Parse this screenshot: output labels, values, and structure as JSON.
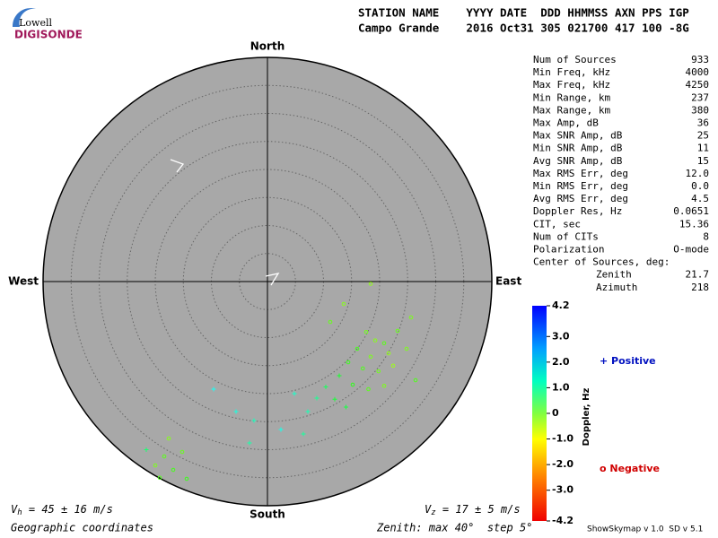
{
  "logo": {
    "top": "Lowell",
    "bottom": "DIGISONDE"
  },
  "header": {
    "line1": "STATION NAME    YYYY DATE  DDD HHMMSS AXN PPS IGP",
    "line2": "Campo Grande    2016 Oct31 305 021700 417 100 -8G"
  },
  "directions": {
    "north": "North",
    "south": "South",
    "east": "East",
    "west": "West"
  },
  "stats": [
    {
      "label": "Num of Sources",
      "value": "933"
    },
    {
      "label": "Min Freq, kHz",
      "value": "4000"
    },
    {
      "label": "Max Freq, kHz",
      "value": "4250"
    },
    {
      "label": "Min Range, km",
      "value": "237"
    },
    {
      "label": "Max Range, km",
      "value": "380"
    },
    {
      "label": "Max Amp, dB",
      "value": "36"
    },
    {
      "label": "Max SNR Amp, dB",
      "value": "25"
    },
    {
      "label": "Min SNR Amp, dB",
      "value": "11"
    },
    {
      "label": "Avg SNR Amp, dB",
      "value": "15"
    },
    {
      "label": "Max RMS Err, deg",
      "value": "12.0"
    },
    {
      "label": "Min RMS Err, deg",
      "value": "0.0"
    },
    {
      "label": "Avg RMS Err, deg",
      "value": "4.5"
    },
    {
      "label": "Doppler Res, Hz",
      "value": "0.0651"
    },
    {
      "label": "CIT, sec",
      "value": "15.36"
    },
    {
      "label": "Num of CITs",
      "value": "8"
    },
    {
      "label": "Polarization",
      "value": "O-mode"
    }
  ],
  "center": {
    "label": "Center of Sources, deg:",
    "rows": [
      {
        "label": "Zenith",
        "value": "21.7"
      },
      {
        "label": "Azimuth",
        "value": "218"
      }
    ]
  },
  "colorbar": {
    "title": "Doppler, Hz",
    "lim": [
      -4.2,
      4.2
    ],
    "ticks": [
      4.2,
      {
        "value": 3,
        "label": "3.0"
      },
      {
        "value": 2,
        "label": "2.0"
      },
      {
        "value": 1,
        "label": "1.0"
      },
      0,
      {
        "value": -1,
        "label": "-1.0"
      },
      {
        "value": -2,
        "label": "-2.0"
      },
      {
        "value": -3,
        "label": "-3.0"
      },
      -4.2
    ]
  },
  "legend": {
    "positive": "+ Positive",
    "negative": "o Negative"
  },
  "vh": {
    "symbol": "V",
    "sub": "h",
    "text": " = 45 ± 16 m/s"
  },
  "vz": {
    "symbol": "V",
    "sub": "z",
    "text": " = 17 ± 5 m/s"
  },
  "footer": {
    "coords": "Geographic coordinates",
    "zenith": "Zenith: max 40°  step 5°",
    "version": "ShowSkymap v 1.0  SD v 5.1"
  },
  "sources": [
    [
      17.6,
      -9,
      -0.8
    ],
    [
      19.2,
      -10.5,
      -1.0
    ],
    [
      20.8,
      -11,
      -0.6
    ],
    [
      16.0,
      -12,
      -0.4
    ],
    [
      18.4,
      -13.4,
      -0.9
    ],
    [
      21.6,
      -12.8,
      -1.1
    ],
    [
      23.2,
      -8.8,
      -0.7
    ],
    [
      14.4,
      -14.4,
      -0.3
    ],
    [
      17.0,
      -15.5,
      -0.5
    ],
    [
      19.8,
      -16,
      -0.8
    ],
    [
      22.4,
      -15,
      -1.2
    ],
    [
      24.8,
      -12,
      -0.9
    ],
    [
      12.8,
      -16.8,
      0.2
    ],
    [
      15.2,
      -18.4,
      -0.2
    ],
    [
      18.0,
      -19.2,
      -0.6
    ],
    [
      20.8,
      -18.6,
      -0.9
    ],
    [
      10.4,
      -18.8,
      0.6
    ],
    [
      12.0,
      -21.0,
      0.3
    ],
    [
      8.8,
      -20.8,
      1.1
    ],
    [
      14.0,
      -22.4,
      0.4
    ],
    [
      7.2,
      -23.2,
      1.4
    ],
    [
      4.8,
      -20.0,
      1.6
    ],
    [
      6.4,
      -27.2,
      1.2
    ],
    [
      2.4,
      -26.4,
      1.9
    ],
    [
      -2.4,
      -24.8,
      1.5
    ],
    [
      -5.6,
      -23.2,
      1.8
    ],
    [
      -9.6,
      -19.2,
      2.0
    ],
    [
      -3.2,
      -28.8,
      1.3
    ],
    [
      13.6,
      -4.0,
      -1.0
    ],
    [
      11.2,
      -7.2,
      -0.7
    ],
    [
      25.6,
      -6.4,
      -0.9
    ],
    [
      18.4,
      -0.4,
      -1.1
    ],
    [
      26.4,
      -17.6,
      -0.5
    ],
    [
      -18.4,
      -31.2,
      -0.6
    ],
    [
      -20.0,
      -32.8,
      -0.9
    ],
    [
      -16.8,
      -33.6,
      -0.4
    ],
    [
      -15.2,
      -30.4,
      -0.7
    ],
    [
      -17.6,
      -28.0,
      -1.0
    ],
    [
      -21.6,
      -30.0,
      0.8
    ],
    [
      -14.4,
      -35.2,
      -0.3
    ],
    [
      -19.2,
      -35.0,
      -0.5
    ]
  ]
}
